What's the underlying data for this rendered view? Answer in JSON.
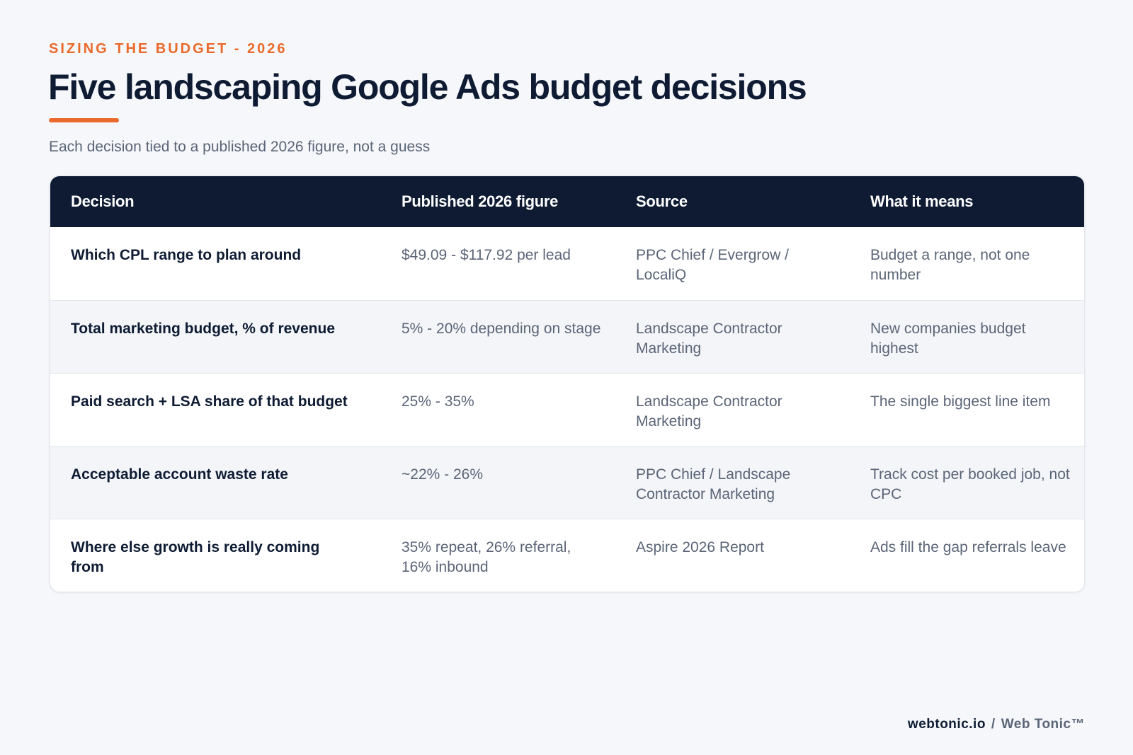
{
  "header": {
    "eyebrow": "SIZING THE BUDGET - 2026",
    "title": "Five landscaping Google Ads budget decisions",
    "subtitle": "Each decision tied to a published 2026 figure, not a guess"
  },
  "table": {
    "columns": [
      "Decision",
      "Published 2026 figure",
      "Source",
      "What it means"
    ],
    "rows": [
      {
        "decision": "Which CPL range to plan around",
        "figure": "$49.09 - $117.92 per lead",
        "source": "PPC Chief / Evergrow / LocaliQ",
        "meaning": "Budget a range, not one number"
      },
      {
        "decision": "Total marketing budget, % of revenue",
        "figure": "5% - 20% depending on stage",
        "source": "Landscape Contractor Marketing",
        "meaning": "New companies budget highest"
      },
      {
        "decision": "Paid search + LSA share of that budget",
        "figure": "25% - 35%",
        "source": "Landscape Contractor Marketing",
        "meaning": "The single biggest line item"
      },
      {
        "decision": "Acceptable account waste rate",
        "figure": "~22% - 26%",
        "source": "PPC Chief / Landscape Contractor Marketing",
        "meaning": "Track cost per booked job, not CPC"
      },
      {
        "decision": "Where else growth is really coming from",
        "figure": "35% repeat, 26% referral, 16% inbound",
        "source": "Aspire 2026 Report",
        "meaning": "Ads fill the gap referrals leave"
      }
    ]
  },
  "footer": {
    "site": "webtonic.io",
    "separator": "/",
    "brand": "Web Tonic™"
  },
  "colors": {
    "accent": "#ea6a2c",
    "navy": "#0e1b33",
    "background": "#f5f7fa"
  }
}
